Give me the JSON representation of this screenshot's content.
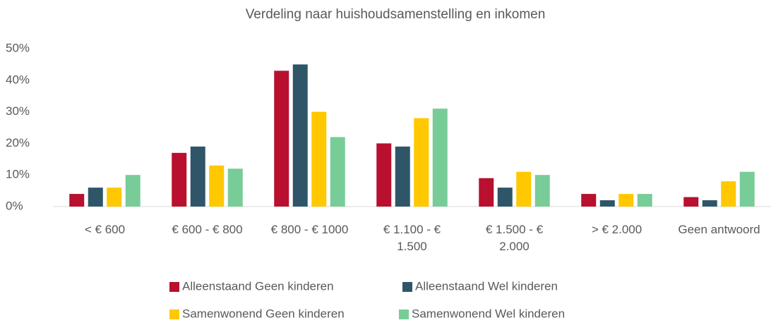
{
  "chart_data": {
    "type": "bar",
    "title": "Verdeling naar huishoudsamenstelling en inkomen",
    "categories": [
      "< € 600",
      "€ 600 - € 800",
      "€ 800 - € 1000",
      "€ 1.100 - € 1.500",
      "€ 1.500 - € 2.000",
      "> € 2.000",
      "Geen antwoord"
    ],
    "series": [
      {
        "name": "Alleenstaand Geen kinderen",
        "color": "#b8102e",
        "values": [
          4,
          17,
          43,
          20,
          9,
          4,
          3
        ]
      },
      {
        "name": "Alleenstaand Wel kinderen",
        "color": "#2e5668",
        "values": [
          6,
          19,
          45,
          19,
          6,
          2,
          2
        ]
      },
      {
        "name": "Samenwonend Geen kinderen",
        "color": "#ffc800",
        "values": [
          6,
          13,
          30,
          28,
          11,
          4,
          8
        ]
      },
      {
        "name": "Samenwonend Wel kinderen",
        "color": "#78cc98",
        "values": [
          10,
          12,
          22,
          31,
          10,
          4,
          11
        ]
      }
    ],
    "ylim": [
      0,
      50
    ],
    "yticks": [
      {
        "value": 0,
        "label": "0%"
      },
      {
        "value": 10,
        "label": "10%"
      },
      {
        "value": 20,
        "label": "20%"
      },
      {
        "value": 30,
        "label": "30%"
      },
      {
        "value": 40,
        "label": "40%"
      },
      {
        "value": 50,
        "label": "50%"
      }
    ],
    "grid": false
  }
}
